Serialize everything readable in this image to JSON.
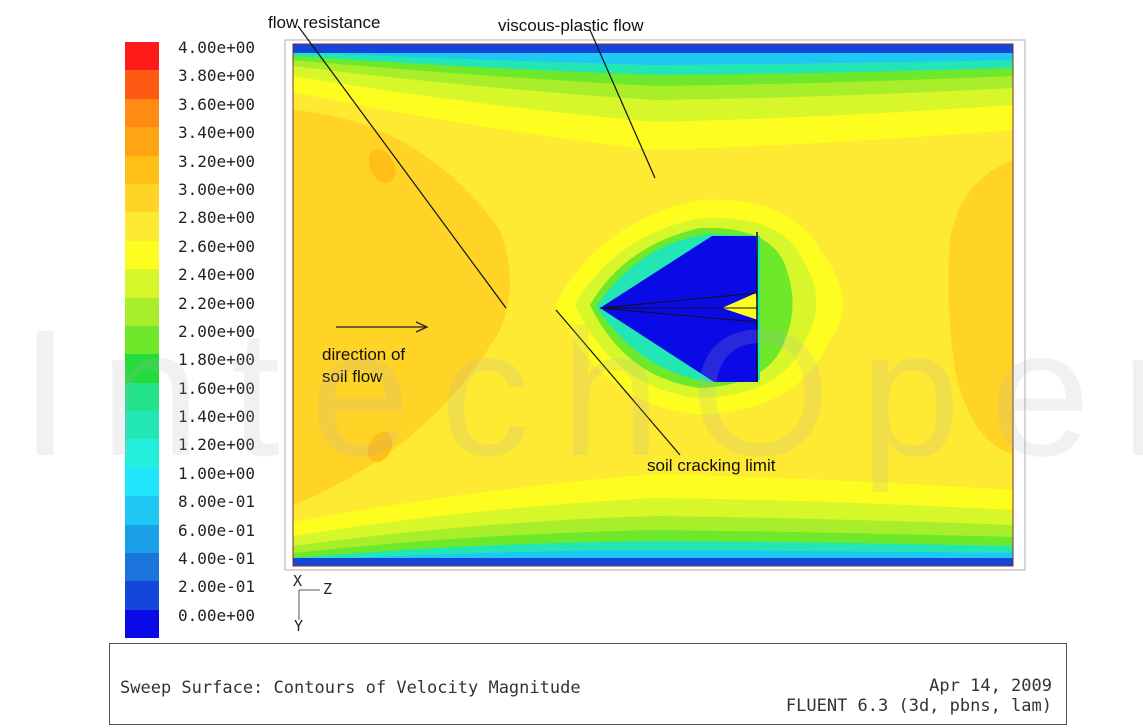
{
  "colorbar": {
    "labels": [
      "4.00e+00",
      "3.80e+00",
      "3.60e+00",
      "3.40e+00",
      "3.20e+00",
      "3.00e+00",
      "2.80e+00",
      "2.60e+00",
      "2.40e+00",
      "2.20e+00",
      "2.00e+00",
      "1.80e+00",
      "1.60e+00",
      "1.40e+00",
      "1.20e+00",
      "1.00e+00",
      "8.00e-01",
      "6.00e-01",
      "4.00e-01",
      "2.00e-01",
      "0.00e+00"
    ],
    "colors": [
      "#ff1a1a",
      "#ff5a14",
      "#ff8a14",
      "#ffa514",
      "#ffbf14",
      "#ffd426",
      "#ffea33",
      "#fdfd1f",
      "#d8f72a",
      "#a8ee2a",
      "#6ee82a",
      "#22dc3c",
      "#22e28a",
      "#22e6b4",
      "#22f0dc",
      "#1fe6fa",
      "#1fc8f2",
      "#1aa0e6",
      "#1a74dc",
      "#1446dc",
      "#0a0ae6"
    ]
  },
  "annotations": {
    "flow_resistance": "flow resistance",
    "viscous_plastic": "viscous-plastic flow",
    "direction": "direction of\nsoil flow",
    "soil_cracking": "soil cracking limit"
  },
  "axes": {
    "x": "X",
    "z": "Z",
    "y": "Y"
  },
  "footer": {
    "title": "Sweep Surface: Contours of Velocity Magnitude",
    "date": "Apr 14, 2009",
    "software": "FLUENT 6.3 (3d, pbns, lam)"
  },
  "watermark": "IntechOpen"
}
